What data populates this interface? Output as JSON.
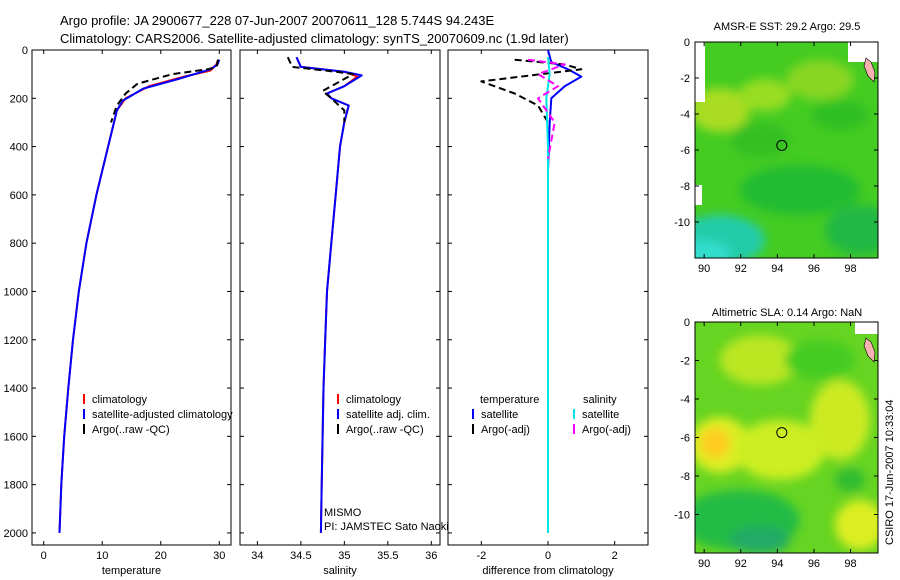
{
  "header": {
    "title_line1": "Argo profile: JA 2900677_228 07-Jun-2007 20070611_128 5.744S 94.243E",
    "title_line2": "Climatology: CARS2006. Satellite-adjusted climatology: synTS_20070609.nc (1.9d later)"
  },
  "colors": {
    "climatology": "#ff0000",
    "satellite": "#0000ff",
    "argo": "#000000",
    "satellite_sal": "#00e5e5",
    "argo_sal": "#ff00ff"
  },
  "chart_data": [
    {
      "id": "temperature",
      "type": "line",
      "xlabel": "temperature",
      "xlim": [
        -2,
        32
      ],
      "ylim": [
        0,
        2050
      ],
      "xticks": [
        0,
        10,
        20,
        30
      ],
      "yticks": [
        0,
        200,
        400,
        600,
        800,
        1000,
        1200,
        1400,
        1600,
        1800,
        2000
      ],
      "series": [
        {
          "name": "climatology",
          "color": "#ff0000",
          "dash": "solid",
          "points": [
            [
              29.8,
              40
            ],
            [
              29.5,
              60
            ],
            [
              28.5,
              85
            ],
            [
              24,
              110
            ],
            [
              18,
              150
            ],
            [
              14,
              200
            ],
            [
              12.5,
              250
            ],
            [
              11,
              400
            ],
            [
              9,
              600
            ],
            [
              7.3,
              800
            ],
            [
              6,
              1000
            ],
            [
              5,
              1200
            ],
            [
              4.2,
              1400
            ],
            [
              3.5,
              1600
            ],
            [
              3,
              1800
            ],
            [
              2.7,
              2000
            ]
          ]
        },
        {
          "name": "satellite-adjusted climatology",
          "color": "#0000ff",
          "dash": "solid",
          "points": [
            [
              30,
              40
            ],
            [
              29.7,
              60
            ],
            [
              28.5,
              80
            ],
            [
              23,
              120
            ],
            [
              17,
              160
            ],
            [
              13.5,
              210
            ],
            [
              12.5,
              250
            ],
            [
              11,
              400
            ],
            [
              9,
              600
            ],
            [
              7.3,
              800
            ],
            [
              6,
              1000
            ],
            [
              5,
              1200
            ],
            [
              4.2,
              1400
            ],
            [
              3.5,
              1600
            ],
            [
              3,
              1800
            ],
            [
              2.7,
              2000
            ]
          ]
        },
        {
          "name": "Argo(..raw -QC)",
          "color": "#000000",
          "dash": "dashed",
          "points": [
            [
              29.8,
              40
            ],
            [
              29.5,
              70
            ],
            [
              28,
              80
            ],
            [
              22,
              100
            ],
            [
              16,
              140
            ],
            [
              14,
              180
            ],
            [
              12.5,
              230
            ],
            [
              11.5,
              300
            ]
          ]
        }
      ],
      "legend": [
        "climatology",
        "satellite-adjusted climatology",
        "Argo(..raw -QC)"
      ]
    },
    {
      "id": "salinity",
      "type": "line",
      "xlabel": "salinity",
      "xlim": [
        33.8,
        36.1
      ],
      "ylim": [
        0,
        2050
      ],
      "xticks": [
        34,
        34.5,
        35,
        35.5,
        36
      ],
      "yticks": [
        0,
        200,
        400,
        600,
        800,
        1000,
        1200,
        1400,
        1600,
        1800,
        2000
      ],
      "series": [
        {
          "name": "climatology",
          "color": "#ff0000",
          "dash": "solid",
          "points": [
            [
              34.45,
              30
            ],
            [
              34.5,
              70
            ],
            [
              35.0,
              90
            ],
            [
              35.15,
              110
            ],
            [
              35.0,
              150
            ],
            [
              34.8,
              180
            ],
            [
              34.85,
              200
            ],
            [
              35.05,
              230
            ],
            [
              35.0,
              300
            ],
            [
              34.95,
              400
            ],
            [
              34.9,
              600
            ],
            [
              34.85,
              800
            ],
            [
              34.8,
              1000
            ],
            [
              34.78,
              1200
            ],
            [
              34.76,
              1400
            ],
            [
              34.75,
              1600
            ],
            [
              34.74,
              1800
            ],
            [
              34.73,
              2000
            ]
          ]
        },
        {
          "name": "satellite adj. clim.",
          "color": "#0000ff",
          "dash": "solid",
          "points": [
            [
              34.45,
              30
            ],
            [
              34.5,
              70
            ],
            [
              35.0,
              90
            ],
            [
              35.2,
              105
            ],
            [
              35.0,
              150
            ],
            [
              34.8,
              180
            ],
            [
              34.85,
              200
            ],
            [
              35.05,
              230
            ],
            [
              35.0,
              300
            ],
            [
              34.95,
              400
            ],
            [
              34.9,
              600
            ],
            [
              34.85,
              800
            ],
            [
              34.8,
              1000
            ],
            [
              34.78,
              1200
            ],
            [
              34.76,
              1400
            ],
            [
              34.75,
              1600
            ],
            [
              34.74,
              1800
            ],
            [
              34.73,
              2000
            ]
          ]
        },
        {
          "name": "Argo(..raw -QC)",
          "color": "#000000",
          "dash": "dashed",
          "points": [
            [
              34.35,
              30
            ],
            [
              34.4,
              70
            ],
            [
              34.9,
              90
            ],
            [
              35.1,
              100
            ],
            [
              34.9,
              140
            ],
            [
              34.75,
              170
            ],
            [
              34.85,
              200
            ],
            [
              35.0,
              250
            ],
            [
              35.0,
              300
            ]
          ]
        }
      ],
      "legend": [
        "climatology",
        "satellite adj. clim.",
        "Argo(..raw -QC)"
      ],
      "annotation_line1": "MISMO",
      "annotation_line2": "PI: JAMSTEC Sato Naoki"
    },
    {
      "id": "difference",
      "type": "line",
      "xlabel": "difference from climatology",
      "xlim": [
        -3,
        3
      ],
      "ylim": [
        0,
        2050
      ],
      "xticks": [
        -2,
        0,
        2
      ],
      "yticks": [
        0,
        200,
        400,
        600,
        800,
        1000,
        1200,
        1400,
        1600,
        1800,
        2000
      ],
      "series": [
        {
          "name": "temperature satellite",
          "color": "#0000ff",
          "dash": "solid",
          "points": [
            [
              0,
              0
            ],
            [
              0.1,
              50
            ],
            [
              0.6,
              80
            ],
            [
              1.0,
              110
            ],
            [
              0.5,
              150
            ],
            [
              0.1,
              200
            ],
            [
              0.05,
              300
            ],
            [
              0,
              500
            ],
            [
              0,
              2000
            ]
          ]
        },
        {
          "name": "temperature Argo(-adj)",
          "color": "#000000",
          "dash": "dashed",
          "points": [
            [
              -1.0,
              40
            ],
            [
              0.5,
              60
            ],
            [
              1.0,
              80
            ],
            [
              -2.0,
              130
            ],
            [
              -1.0,
              180
            ],
            [
              -0.3,
              230
            ],
            [
              0,
              300
            ]
          ]
        },
        {
          "name": "salinity satellite",
          "color": "#00e5e5",
          "dash": "solid",
          "points": [
            [
              0,
              30
            ],
            [
              0.05,
              100
            ],
            [
              -0.05,
              200
            ],
            [
              0,
              400
            ],
            [
              0,
              2000
            ]
          ]
        },
        {
          "name": "salinity Argo(-adj)",
          "color": "#ff00ff",
          "dash": "dashed",
          "points": [
            [
              -0.6,
              40
            ],
            [
              0.5,
              60
            ],
            [
              -0.3,
              100
            ],
            [
              0.3,
              150
            ],
            [
              -0.3,
              200
            ],
            [
              0.2,
              300
            ],
            [
              0,
              450
            ]
          ]
        }
      ],
      "legend_col1_title": "temperature",
      "legend_col2_title": "salinity",
      "legend_col1": [
        "satellite",
        "Argo(-adj)"
      ],
      "legend_col2": [
        "satellite",
        "Argo(-adj)"
      ]
    },
    {
      "id": "sst_map",
      "type": "heatmap",
      "title": "AMSR-E SST: 29.2 Argo: 29.5",
      "xlim": [
        89.5,
        99.5
      ],
      "ylim": [
        -12,
        0
      ],
      "xticks": [
        90,
        92,
        94,
        96,
        98
      ],
      "yticks": [
        -10,
        -8,
        -6,
        -4,
        -2,
        0
      ],
      "marker": [
        94.243,
        -5.744
      ]
    },
    {
      "id": "sla_map",
      "type": "heatmap",
      "title": "Altimetric SLA: 0.14 Argo: NaN",
      "xlim": [
        89.5,
        99.5
      ],
      "ylim": [
        -12,
        0
      ],
      "xticks": [
        90,
        92,
        94,
        96,
        98
      ],
      "yticks": [
        -10,
        -8,
        -6,
        -4,
        -2,
        0
      ],
      "marker": [
        94.243,
        -5.744
      ]
    }
  ],
  "footer": {
    "credit": "CSIRO 17-Jun-2007 10:33:04"
  }
}
